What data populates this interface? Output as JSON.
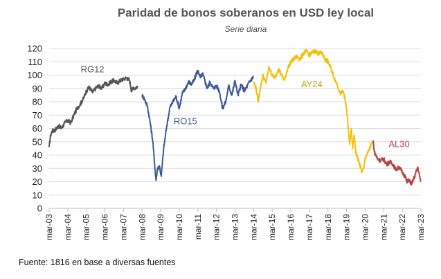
{
  "chart_data": {
    "type": "line",
    "title": "Paridad de bonos soberanos en USD ley local",
    "subtitle": "Serie diaria",
    "xlabel": "",
    "ylabel": "",
    "ylim": [
      0,
      120
    ],
    "yticks": [
      0,
      10,
      20,
      30,
      40,
      50,
      60,
      70,
      80,
      90,
      100,
      110,
      120
    ],
    "xlim": [
      2003.17,
      2023.17
    ],
    "xticks": [
      "mar-03",
      "mar-04",
      "mar-05",
      "mar-06",
      "mar-07",
      "mar-08",
      "mar-09",
      "mar-10",
      "mar-11",
      "mar-12",
      "mar-13",
      "mar-14",
      "mar-15",
      "mar-16",
      "mar-17",
      "mar-18",
      "mar-19",
      "mar-20",
      "mar-21",
      "mar-22",
      "mar-23"
    ],
    "grid": "horizontal",
    "legend": "labels on chart",
    "series": [
      {
        "name": "RG12",
        "color": "#555555",
        "label_color": "#555555",
        "x": [
          2003.17,
          2003.25,
          2003.33,
          2003.5,
          2003.67,
          2003.83,
          2004.0,
          2004.17,
          2004.33,
          2004.5,
          2004.67,
          2004.83,
          2005.0,
          2005.17,
          2005.33,
          2005.5,
          2005.67,
          2005.83,
          2006.0,
          2006.17,
          2006.33,
          2006.5,
          2006.67,
          2006.83,
          2007.0,
          2007.17,
          2007.33,
          2007.5,
          2007.6,
          2007.7,
          2007.8,
          2007.92
        ],
        "y": [
          46,
          55,
          58,
          59,
          62,
          60,
          64,
          66,
          64,
          70,
          75,
          78,
          82,
          88,
          91,
          87,
          90,
          92,
          90,
          94,
          93,
          95,
          96,
          94,
          96,
          97,
          98,
          96,
          88,
          91,
          90,
          92
        ]
      },
      {
        "name": "RO15",
        "color": "#3d5896",
        "label_color": "#3d5896",
        "x": [
          2008.17,
          2008.3,
          2008.45,
          2008.6,
          2008.75,
          2008.83,
          2008.92,
          2009.0,
          2009.1,
          2009.2,
          2009.33,
          2009.5,
          2009.67,
          2009.83,
          2010.0,
          2010.17,
          2010.33,
          2010.5,
          2010.67,
          2010.83,
          2011.0,
          2011.1,
          2011.2,
          2011.3,
          2011.42,
          2011.5,
          2011.67,
          2011.83,
          2012.0,
          2012.17,
          2012.33,
          2012.5,
          2012.67,
          2012.83,
          2013.0,
          2013.17,
          2013.33,
          2013.5,
          2013.67,
          2013.83,
          2014.0,
          2014.17
        ],
        "y": [
          85,
          82,
          77,
          65,
          50,
          35,
          21,
          30,
          32,
          24,
          45,
          62,
          76,
          80,
          84,
          75,
          86,
          90,
          95,
          93,
          97,
          102,
          103,
          98,
          101,
          98,
          90,
          95,
          90,
          92,
          88,
          75,
          80,
          92,
          85,
          96,
          85,
          93,
          88,
          92,
          96,
          99
        ]
      },
      {
        "name": "AY24",
        "color": "#f5c00c",
        "label_color": "#c9a00c",
        "x": [
          2014.17,
          2014.3,
          2014.42,
          2014.5,
          2014.67,
          2014.83,
          2015.0,
          2015.17,
          2015.33,
          2015.5,
          2015.67,
          2015.83,
          2016.0,
          2016.17,
          2016.33,
          2016.5,
          2016.67,
          2016.83,
          2017.0,
          2017.17,
          2017.33,
          2017.5,
          2017.67,
          2017.83,
          2018.0,
          2018.17,
          2018.33,
          2018.5,
          2018.67,
          2018.83,
          2019.0,
          2019.17,
          2019.33,
          2019.42,
          2019.5,
          2019.58,
          2019.67,
          2019.83,
          2020.0,
          2020.1,
          2020.17,
          2020.33,
          2020.5,
          2020.6
        ],
        "y": [
          95,
          90,
          80,
          88,
          100,
          94,
          106,
          100,
          98,
          105,
          100,
          96,
          105,
          110,
          112,
          114,
          112,
          116,
          118,
          115,
          117,
          118,
          116,
          117,
          112,
          110,
          105,
          98,
          93,
          86,
          88,
          75,
          48,
          60,
          45,
          55,
          42,
          35,
          27,
          30,
          38,
          42,
          48,
          50
        ]
      },
      {
        "name": "AL30",
        "color": "#b84444",
        "label_color": "#b84444",
        "x": [
          2020.6,
          2020.67,
          2020.75,
          2020.83,
          2021.0,
          2021.17,
          2021.33,
          2021.5,
          2021.67,
          2021.83,
          2022.0,
          2022.17,
          2022.33,
          2022.42,
          2022.5,
          2022.67,
          2022.83,
          2023.0,
          2023.1,
          2023.17
        ],
        "y": [
          51,
          42,
          40,
          37,
          36,
          37,
          33,
          35,
          33,
          29,
          31,
          27,
          24,
          19,
          22,
          18,
          24,
          31,
          24,
          20
        ]
      }
    ],
    "labels": [
      {
        "text": "RG12",
        "series": "RG12"
      },
      {
        "text": "RO15",
        "series": "RO15"
      },
      {
        "text": "AY24",
        "series": "AY24"
      },
      {
        "text": "AL30",
        "series": "AL30"
      }
    ]
  },
  "footer": {
    "source": "Fuente: 1816 en base a diversas fuentes"
  }
}
